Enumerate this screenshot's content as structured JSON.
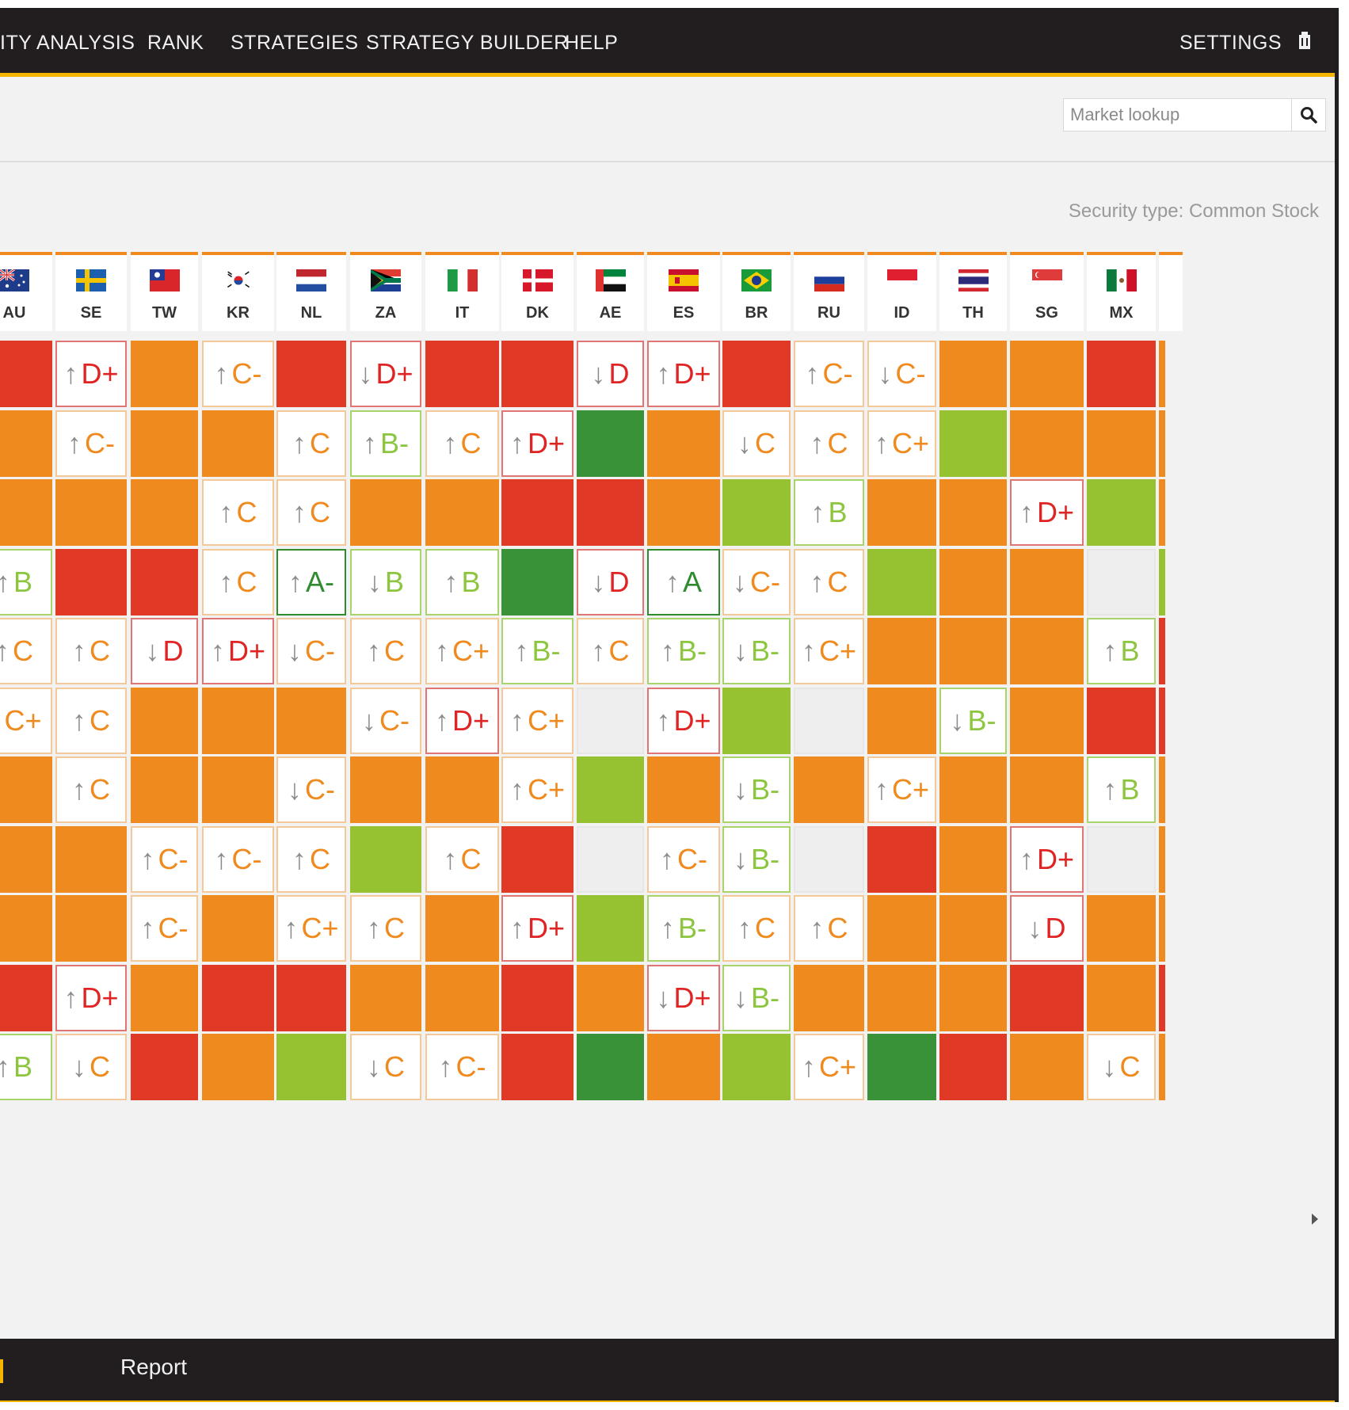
{
  "nav": {
    "items": [
      "ITY ANALYSIS",
      "RANK",
      "STRATEGIES",
      "STRATEGY BUILDER",
      "HELP"
    ],
    "settings_label": "SETTINGS"
  },
  "search": {
    "placeholder": "Market lookup",
    "icon": "search-icon"
  },
  "security_type": "Security type: Common Stock",
  "colors": {
    "nav_bg": "#221e20",
    "accent": "#f5b400",
    "red": "#e03a26",
    "orange": "#ef8a1e",
    "lightgreen": "#96c131",
    "darkgreen": "#3a9238",
    "grade_red": "#e02424",
    "grade_orange": "#ef8a1e",
    "grade_lightgreen": "#8cc63f",
    "grade_darkgreen": "#2e8b2e"
  },
  "columns": [
    {
      "code": "AU",
      "flag": "australia-flag"
    },
    {
      "code": "SE",
      "flag": "sweden-flag"
    },
    {
      "code": "TW",
      "flag": "taiwan-flag"
    },
    {
      "code": "KR",
      "flag": "korea-flag"
    },
    {
      "code": "NL",
      "flag": "netherlands-flag"
    },
    {
      "code": "ZA",
      "flag": "south-africa-flag"
    },
    {
      "code": "IT",
      "flag": "italy-flag"
    },
    {
      "code": "DK",
      "flag": "denmark-flag"
    },
    {
      "code": "AE",
      "flag": "uae-flag"
    },
    {
      "code": "ES",
      "flag": "spain-flag"
    },
    {
      "code": "BR",
      "flag": "brazil-flag"
    },
    {
      "code": "RU",
      "flag": "russia-flag"
    },
    {
      "code": "ID",
      "flag": "indonesia-flag"
    },
    {
      "code": "TH",
      "flag": "thailand-flag"
    },
    {
      "code": "SG",
      "flag": "singapore-flag"
    },
    {
      "code": "MX",
      "flag": "mexico-flag"
    }
  ],
  "grid": [
    [
      "R",
      "↑D+",
      "O",
      "↑C-",
      "R",
      "↓D+",
      "R",
      "R",
      "↓D",
      "↑D+",
      "R",
      "↑C-",
      "↓C-",
      "O",
      "O",
      "R"
    ],
    [
      "O",
      "↑C-",
      "O",
      "O",
      "↑C",
      "↑B-",
      "↑C",
      "↑D+",
      "DG",
      "O",
      "↓C",
      "↑C",
      "↑C+",
      "LG",
      "O",
      "O"
    ],
    [
      "O",
      "O",
      "O",
      "↑C",
      "↑C",
      "O",
      "O",
      "R",
      "R",
      "O",
      "LG",
      "↑B",
      "O",
      "O",
      "↑D+",
      "LG"
    ],
    [
      "↑B",
      "R",
      "R",
      "↑C",
      "↑A-",
      "↓B",
      "↑B",
      "DG",
      "↓D",
      "↑A",
      "↓C-",
      "↑C",
      "LG",
      "O",
      "O",
      "E"
    ],
    [
      "↑C",
      "↑C",
      "↓D",
      "↑D+",
      "↓C-",
      "↑C",
      "↑C+",
      "↑B-",
      "↑C",
      "↑B-",
      "↓B-",
      "↑C+",
      "O",
      "O",
      "O",
      "↑B"
    ],
    [
      "↑C+",
      "↑C",
      "O",
      "O",
      "O",
      "↓C-",
      "↑D+",
      "↑C+",
      "E",
      "↑D+",
      "LG",
      "E",
      "O",
      "↓B-",
      "O",
      "R"
    ],
    [
      "O",
      "↑C",
      "O",
      "O",
      "↓C-",
      "O",
      "O",
      "↑C+",
      "LG",
      "O",
      "↓B-",
      "O",
      "↑C+",
      "O",
      "O",
      "↑B"
    ],
    [
      "O",
      "O",
      "↑C-",
      "↑C-",
      "↑C",
      "LG",
      "↑C",
      "R",
      "E",
      "↑C-",
      "↓B-",
      "E",
      "R",
      "O",
      "↑D+",
      "E"
    ],
    [
      "O",
      "O",
      "↑C-",
      "O",
      "↑C+",
      "↑C",
      "O",
      "↑D+",
      "LG",
      "↑B-",
      "↑C",
      "↑C",
      "O",
      "O",
      "↓D",
      "O"
    ],
    [
      "R",
      "↑D+",
      "O",
      "R",
      "R",
      "O",
      "O",
      "R",
      "O",
      "↓D+",
      "↓B-",
      "O",
      "O",
      "O",
      "R",
      "O"
    ],
    [
      "↑B",
      "↓C",
      "R",
      "O",
      "LG",
      "↓C",
      "↑C-",
      "R",
      "DG",
      "O",
      "LG",
      "↑C+",
      "DG",
      "R",
      "O",
      "↓C"
    ]
  ],
  "right_edge": [
    "O",
    "O",
    "O",
    "LG",
    "R",
    "R",
    "O",
    "O",
    "O",
    "R",
    "O"
  ],
  "bottom": {
    "report_label": "Report"
  }
}
